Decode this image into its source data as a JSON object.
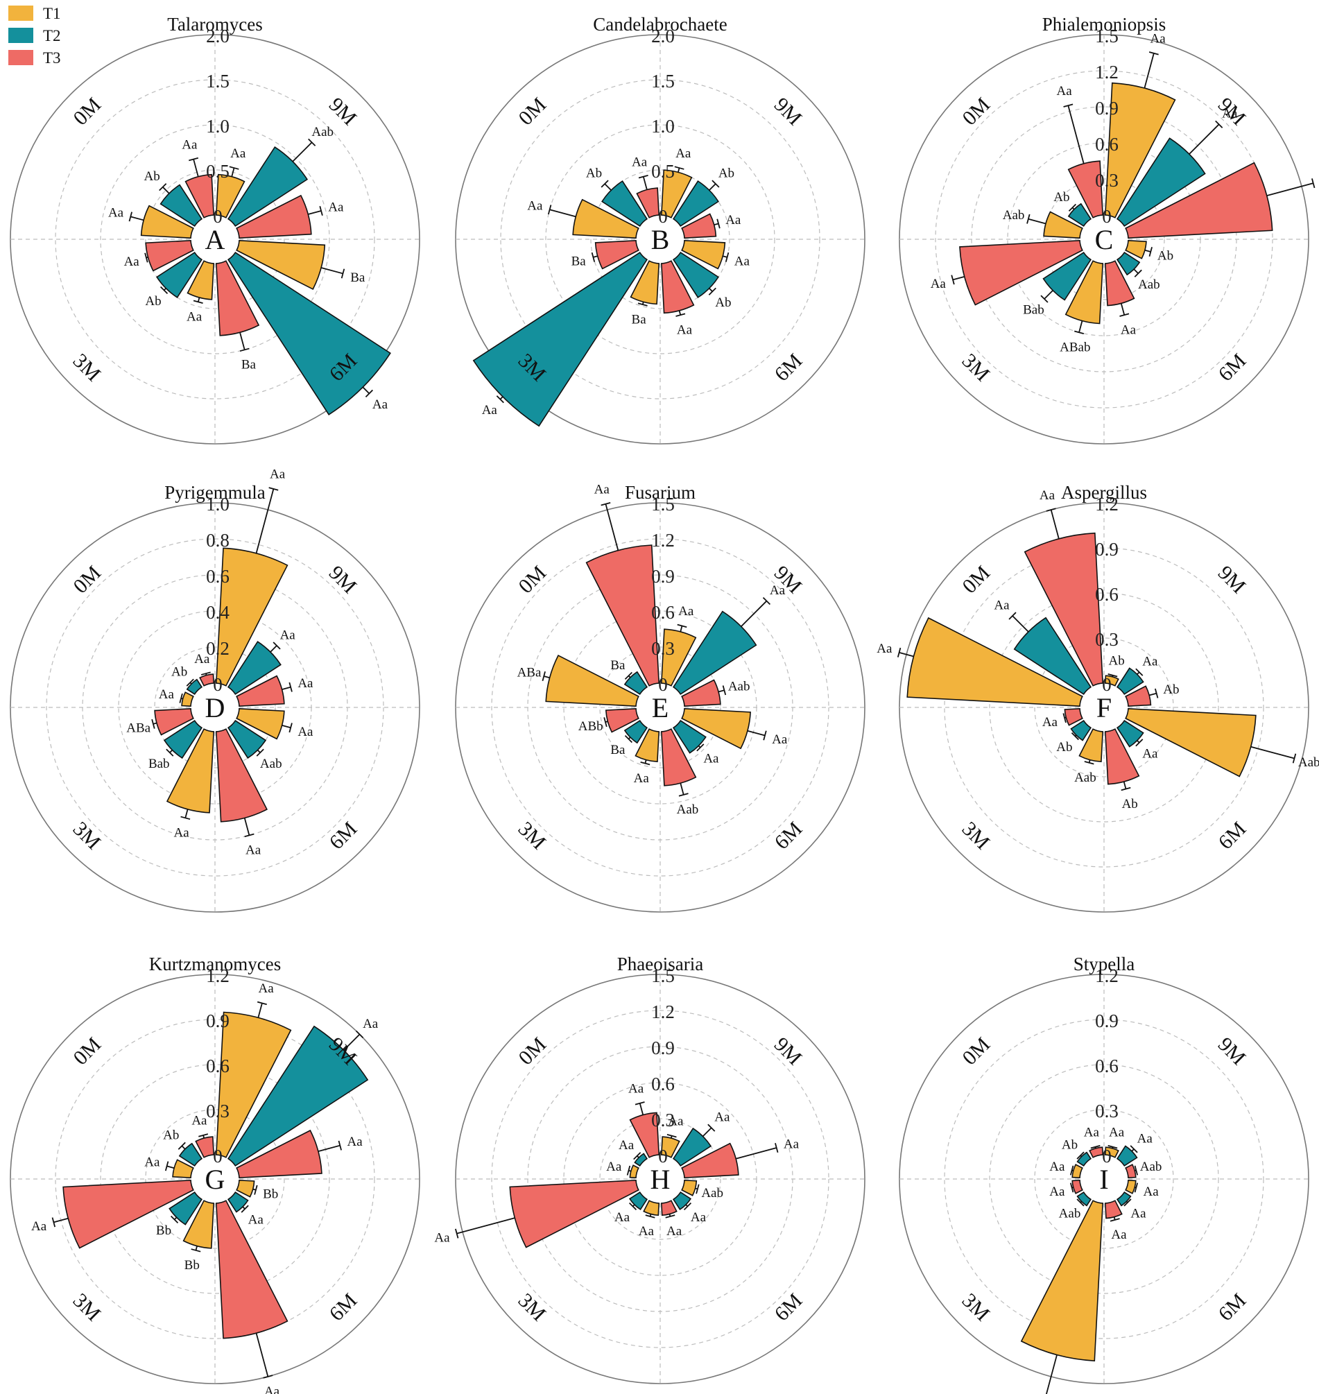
{
  "legend": [
    {
      "label": "T1",
      "color": "#F2B33D"
    },
    {
      "label": "T2",
      "color": "#14909C"
    },
    {
      "label": "T3",
      "color": "#EE6B65"
    }
  ],
  "panel_labels": [
    "A",
    "B",
    "C",
    "D",
    "E",
    "F",
    "G",
    "H",
    "I"
  ],
  "sector_labels": [
    "0M",
    "9M",
    "6M",
    "3M"
  ],
  "chart_data": [
    {
      "type": "bar",
      "polar": true,
      "title": "Talaromyces",
      "letter": "A",
      "rmax": 2.0,
      "ticks": [
        "0",
        "0.5",
        "1.0",
        "1.5",
        "2.0"
      ],
      "tick_values": [
        0,
        0.5,
        1,
        1.5,
        2
      ],
      "sectors": [
        "0M",
        "9M",
        "6M",
        "3M"
      ],
      "series": [
        {
          "name": "T1",
          "values": [
            0.55,
            0.45,
            0.95,
            0.4
          ],
          "err": [
            0.15,
            0.1,
            0.25,
            0.05
          ],
          "sig": [
            "Aa",
            "Aa",
            "Ba",
            "Aa"
          ]
        },
        {
          "name": "T2",
          "values": [
            0.45,
            0.95,
            2.05,
            0.5
          ],
          "err": [
            0.1,
            0.3,
            0.1,
            0.03
          ],
          "sig": [
            "Ab",
            "Aab",
            "Aa",
            "Ab"
          ]
        },
        {
          "name": "T3",
          "values": [
            0.45,
            0.8,
            0.8,
            0.5
          ],
          "err": [
            0.2,
            0.15,
            0.2,
            0.02
          ],
          "sig": [
            "Aa",
            "Aa",
            "Ba",
            "Aa"
          ]
        }
      ]
    },
    {
      "type": "bar",
      "polar": true,
      "title": "Candelabrochaete",
      "letter": "B",
      "rmax": 2.0,
      "ticks": [
        "0",
        "0.5",
        "1.0",
        "1.5",
        "2.0"
      ],
      "tick_values": [
        0,
        0.5,
        1,
        1.5,
        2
      ],
      "sectors": [
        "0M",
        "9M",
        "6M",
        "3M"
      ],
      "series": [
        {
          "name": "T1",
          "values": [
            0.7,
            0.5,
            0.45,
            0.45
          ],
          "err": [
            0.3,
            0.05,
            0.05,
            0.03
          ],
          "sig": [
            "Aa",
            "Aa",
            "Aa",
            "Ba"
          ]
        },
        {
          "name": "T2",
          "values": [
            0.5,
            0.5,
            0.5,
            2.2
          ],
          "err": [
            0.1,
            0.1,
            0.05,
            0.15
          ],
          "sig": [
            "Ab",
            "Ab",
            "Ab",
            "Aa"
          ]
        },
        {
          "name": "T3",
          "values": [
            0.3,
            0.35,
            0.55,
            0.45
          ],
          "err": [
            0.15,
            0.05,
            0.05,
            0.05
          ],
          "sig": [
            "Aa",
            "Aa",
            "Aa",
            "Ba"
          ]
        }
      ]
    },
    {
      "type": "bar",
      "polar": true,
      "title": "Phialemoniopsis",
      "letter": "C",
      "rmax": 1.5,
      "ticks": [
        "0",
        "0.3",
        "0.6",
        "0.9",
        "1.2",
        "1.5"
      ],
      "tick_values": [
        0,
        0.3,
        0.6,
        0.9,
        1.2,
        1.5
      ],
      "sectors": [
        "0M",
        "9M",
        "6M",
        "3M"
      ],
      "series": [
        {
          "name": "T1",
          "values": [
            0.3,
            1.1,
            0.15,
            0.5
          ],
          "err": [
            0.15,
            0.3,
            0.05,
            0.1
          ],
          "sig": [
            "Aab",
            "Aa",
            "Ab",
            "ABab"
          ]
        },
        {
          "name": "T2",
          "values": [
            0.15,
            0.8,
            0.15,
            0.4
          ],
          "err": [
            0.02,
            0.35,
            0.05,
            0.1
          ],
          "sig": [
            "Ab",
            "Aa",
            "Aab",
            "Bab"
          ]
        },
        {
          "name": "T3",
          "values": [
            0.45,
            1.2,
            0.35,
            1.0
          ],
          "err": [
            0.5,
            0.4,
            0.1,
            0.1
          ],
          "sig": [
            "Aa",
            "Aa",
            "Aa",
            "Aa"
          ]
        }
      ]
    },
    {
      "type": "bar",
      "polar": true,
      "title": "Pyrigemmula",
      "letter": "D",
      "rmax": 1.0,
      "ticks": [
        "0",
        "0.2",
        "0.4",
        "0.6",
        "0.8",
        "1.0"
      ],
      "tick_values": [
        0,
        0.2,
        0.4,
        0.6,
        0.8,
        1.0
      ],
      "sectors": [
        "0M",
        "9M",
        "6M",
        "3M"
      ],
      "series": [
        {
          "name": "T1",
          "values": [
            0.05,
            0.75,
            0.25,
            0.45
          ],
          "err": [
            0.01,
            0.4,
            0.05,
            0.05
          ],
          "sig": [
            "Aa",
            "Aa",
            "Aa",
            "Aa"
          ]
        },
        {
          "name": "T2",
          "values": [
            0.05,
            0.3,
            0.2,
            0.2
          ],
          "err": [
            0.01,
            0.05,
            0.02,
            0.02
          ],
          "sig": [
            "Ab",
            "Aa",
            "Aab",
            "Bab"
          ]
        },
        {
          "name": "T3",
          "values": [
            0.05,
            0.25,
            0.5,
            0.2
          ],
          "err": [
            0.01,
            0.05,
            0.1,
            0.02
          ],
          "sig": [
            "Aa",
            "Aa",
            "Aa",
            "ABa"
          ]
        }
      ]
    },
    {
      "type": "bar",
      "polar": true,
      "title": "Fusarium",
      "letter": "E",
      "rmax": 1.5,
      "ticks": [
        "0",
        "0.3",
        "0.6",
        "0.9",
        "1.2",
        "1.5"
      ],
      "tick_values": [
        0,
        0.3,
        0.6,
        0.9,
        1.2,
        1.5
      ],
      "sectors": [
        "0M",
        "9M",
        "6M",
        "3M"
      ],
      "series": [
        {
          "name": "T1",
          "values": [
            0.75,
            0.45,
            0.55,
            0.25
          ],
          "err": [
            0.05,
            0.05,
            0.15,
            0.03
          ],
          "sig": [
            "ABa",
            "Aa",
            "Aa",
            "Aa"
          ]
        },
        {
          "name": "T2",
          "values": [
            0.15,
            0.75,
            0.25,
            0.15
          ],
          "err": [
            0.02,
            0.3,
            0.02,
            0.02
          ],
          "sig": [
            "Ba",
            "Aa",
            "Aa",
            "Ba"
          ]
        },
        {
          "name": "T3",
          "values": [
            1.15,
            0.3,
            0.45,
            0.25
          ],
          "err": [
            0.4,
            0.05,
            0.1,
            0.02
          ],
          "sig": [
            "Aa",
            "Aab",
            "Aab",
            "ABb"
          ]
        }
      ]
    },
    {
      "type": "bar",
      "polar": true,
      "title": "Aspergillus",
      "letter": "F",
      "rmax": 1.2,
      "ticks": [
        "0",
        "0.3",
        "0.6",
        "0.9",
        "1.2"
      ],
      "tick_values": [
        0,
        0.3,
        0.6,
        0.9,
        1.2
      ],
      "sectors": [
        "0M",
        "9M",
        "6M",
        "3M"
      ],
      "series": [
        {
          "name": "T1",
          "values": [
            1.15,
            0.05,
            0.85,
            0.2
          ],
          "err": [
            0.1,
            0.01,
            0.3,
            0.02
          ],
          "sig": [
            "Aa",
            "Ab",
            "Aab",
            "Aab"
          ]
        },
        {
          "name": "T2",
          "values": [
            0.55,
            0.15,
            0.15,
            0.1
          ],
          "err": [
            0.15,
            0.02,
            0.02,
            0.01
          ],
          "sig": [
            "Aa",
            "Aa",
            "Aa",
            "Ab"
          ]
        },
        {
          "name": "T3",
          "values": [
            1.0,
            0.15,
            0.35,
            0.1
          ],
          "err": [
            0.2,
            0.05,
            0.05,
            0.01
          ],
          "sig": [
            "Aa",
            "Ab",
            "Ab",
            "Aa"
          ]
        }
      ]
    },
    {
      "type": "bar",
      "polar": true,
      "title": "Kurtzmanomyces",
      "letter": "G",
      "rmax": 1.2,
      "ticks": [
        "0",
        "0.3",
        "0.6",
        "0.9",
        "1.2"
      ],
      "tick_values": [
        0,
        0.3,
        0.6,
        0.9,
        1.2
      ],
      "sectors": [
        "0M",
        "9M",
        "6M",
        "3M"
      ],
      "series": [
        {
          "name": "T1",
          "values": [
            0.12,
            0.95,
            0.1,
            0.3
          ],
          "err": [
            0.05,
            0.1,
            0.02,
            0.03
          ],
          "sig": [
            "Aa",
            "Aa",
            "Bb",
            "Bb"
          ]
        },
        {
          "name": "T2",
          "values": [
            0.12,
            1.05,
            0.1,
            0.2
          ],
          "err": [
            0.03,
            0.15,
            0.02,
            0.02
          ],
          "sig": [
            "Ab",
            "Aa",
            "Aa",
            "Bb"
          ]
        },
        {
          "name": "T3",
          "values": [
            0.12,
            0.55,
            0.9,
            0.85
          ],
          "err": [
            0.02,
            0.15,
            0.3,
            0.1
          ],
          "sig": [
            "Aa",
            "Aa",
            "Aa",
            "Aa"
          ]
        }
      ]
    },
    {
      "type": "bar",
      "polar": true,
      "title": "Phaeoisaria",
      "letter": "H",
      "rmax": 1.5,
      "ticks": [
        "0",
        "0.3",
        "0.6",
        "0.9",
        "1.2",
        "1.5"
      ],
      "tick_values": [
        0,
        0.3,
        0.6,
        0.9,
        1.2,
        1.5
      ],
      "sectors": [
        "0M",
        "9M",
        "6M",
        "3M"
      ],
      "series": [
        {
          "name": "T1",
          "values": [
            0.05,
            0.15,
            0.1,
            0.1
          ],
          "err": [
            0.02,
            0.02,
            0.02,
            0.02
          ],
          "sig": [
            "Aa",
            "Aa",
            "Aab",
            "Aa"
          ]
        },
        {
          "name": "T2",
          "values": [
            0.05,
            0.3,
            0.1,
            0.1
          ],
          "err": [
            0.02,
            0.1,
            0.02,
            0.02
          ],
          "sig": [
            "Aa",
            "Aa",
            "Aa",
            "Aa"
          ]
        },
        {
          "name": "T3",
          "values": [
            0.35,
            0.45,
            0.1,
            1.05
          ],
          "err": [
            0.1,
            0.35,
            0.02,
            0.5
          ],
          "sig": [
            "Aa",
            "Aa",
            "Aa",
            "Aa"
          ]
        }
      ]
    },
    {
      "type": "bar",
      "polar": true,
      "title": "Stypella",
      "letter": "I",
      "rmax": 1.2,
      "ticks": [
        "0",
        "0.3",
        "0.6",
        "0.9",
        "1.2"
      ],
      "tick_values": [
        0,
        0.3,
        0.6,
        0.9,
        1.2
      ],
      "sectors": [
        "0M",
        "9M",
        "6M",
        "3M"
      ],
      "series": [
        {
          "name": "T1",
          "values": [
            0.05,
            0.05,
            0.05,
            1.05
          ],
          "err": [
            0.01,
            0.01,
            0.01,
            0.5
          ],
          "sig": [
            "Aa",
            "Aa",
            "Aa",
            "Aa"
          ]
        },
        {
          "name": "T2",
          "values": [
            0.05,
            0.1,
            0.05,
            0.05
          ],
          "err": [
            0.01,
            0.02,
            0.01,
            0.01
          ],
          "sig": [
            "Ab",
            "Aa",
            "Aa",
            "Aab"
          ]
        },
        {
          "name": "T3",
          "values": [
            0.05,
            0.05,
            0.1,
            0.05
          ],
          "err": [
            0.01,
            0.01,
            0.02,
            0.01
          ],
          "sig": [
            "Aa",
            "Aab",
            "Aa",
            "Aa"
          ]
        }
      ]
    }
  ]
}
